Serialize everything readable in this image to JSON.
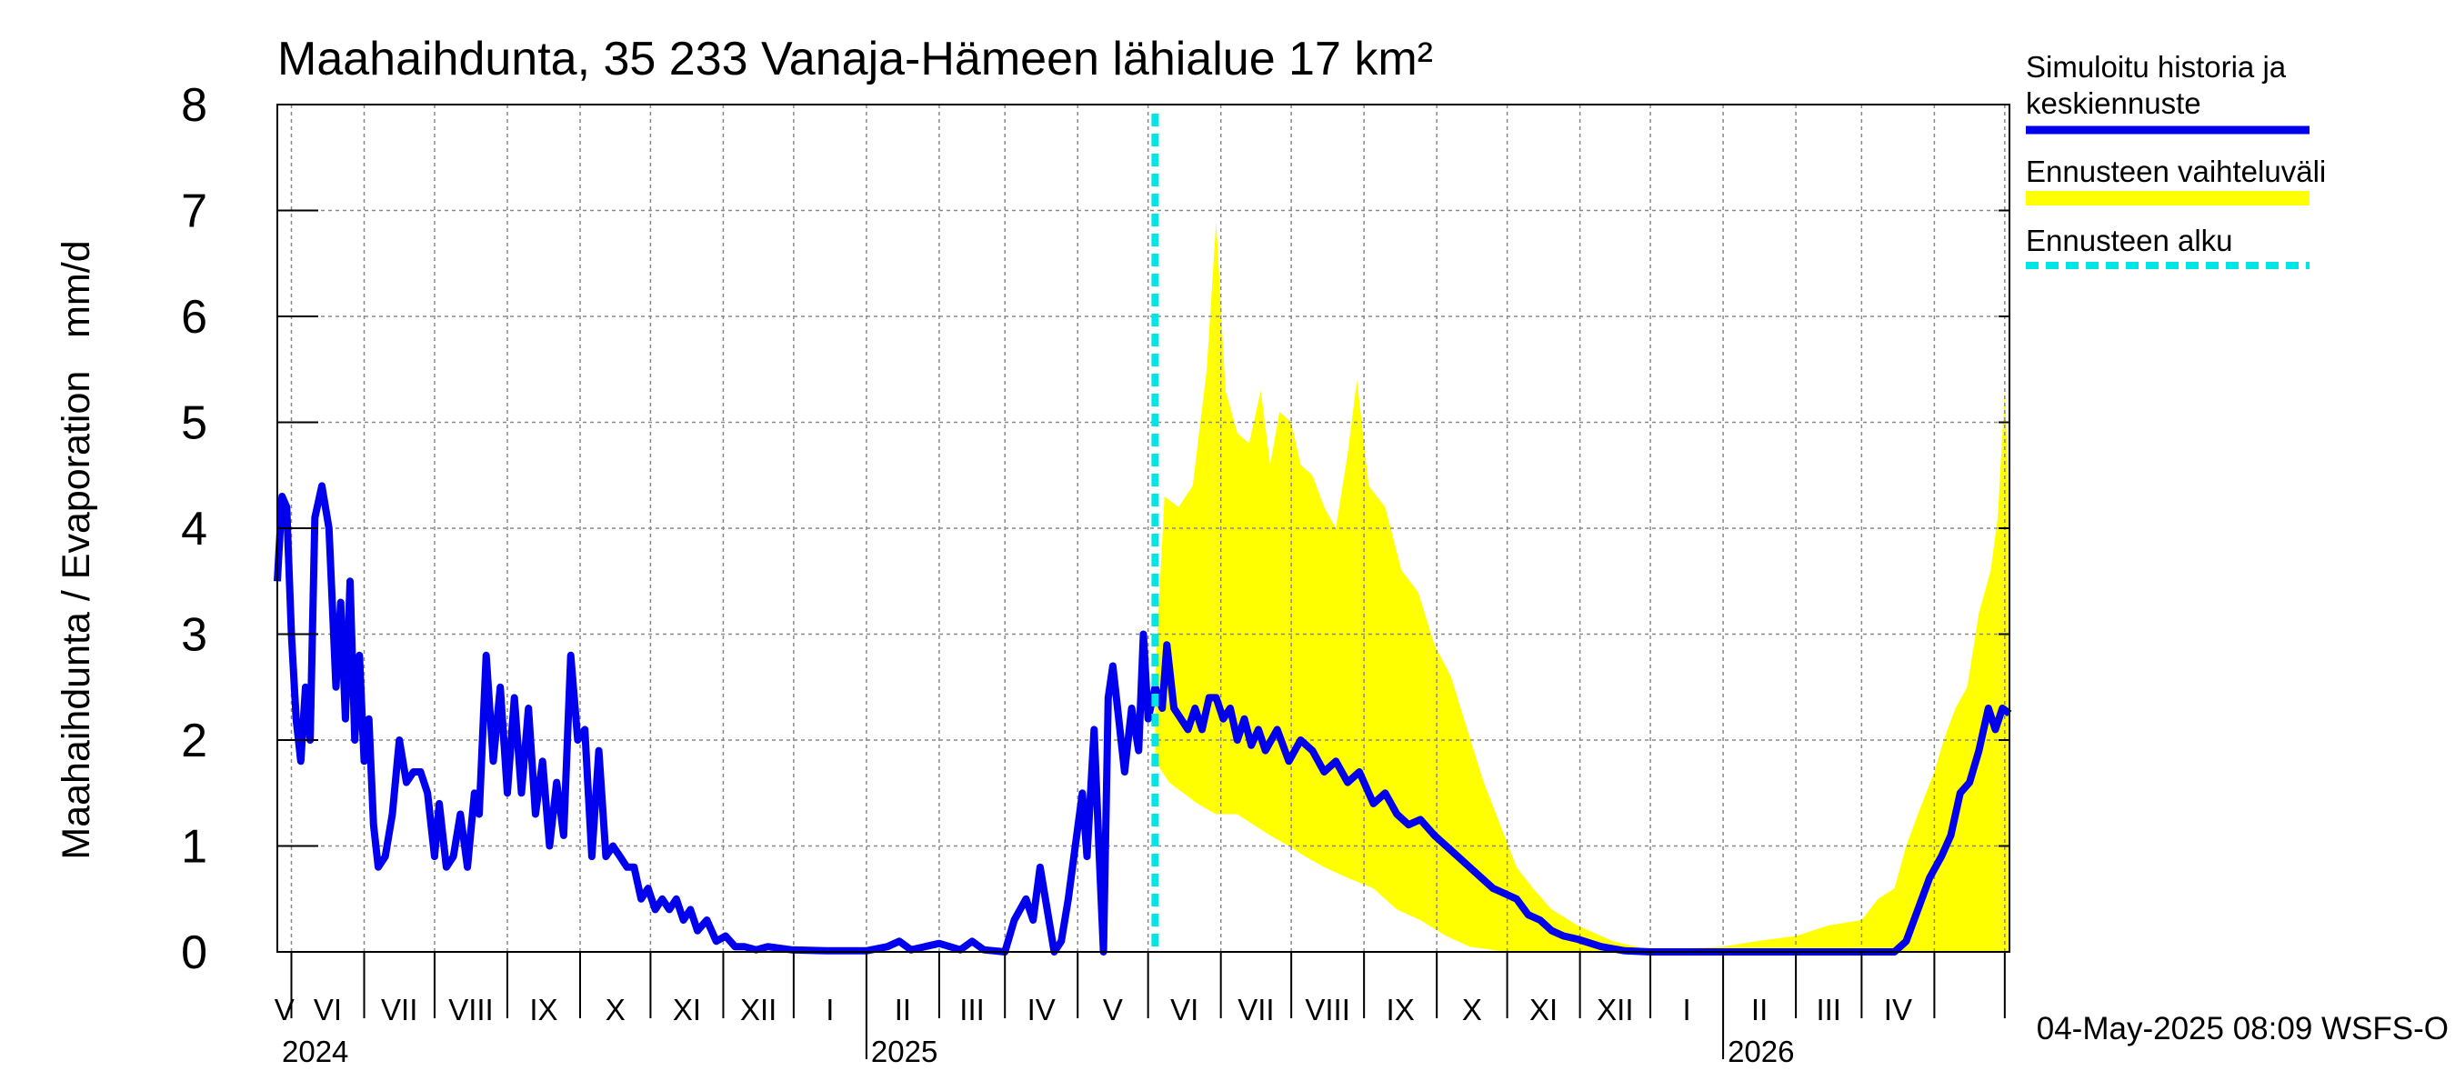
{
  "chart_data": {
    "type": "line",
    "title": "Maahaihdunta, 35 233 Vanaja-Hämeen lähialue 17 km²",
    "ylabel": "Maahaihdunta / Evaporation   mm/d",
    "xlabel": "",
    "ylim": [
      0,
      8
    ],
    "y_ticks": [
      "0",
      "1",
      "2",
      "3",
      "4",
      "5",
      "6",
      "7",
      "8"
    ],
    "month_labels": [
      "V",
      "VI",
      "VII",
      "VIII",
      "IX",
      "X",
      "XI",
      "XII",
      "I",
      "II",
      "III",
      "IV",
      "V",
      "VI",
      "VII",
      "VIII",
      "IX",
      "X",
      "XI",
      "XII",
      "I",
      "II",
      "III",
      "IV"
    ],
    "year_labels": [
      "2024",
      "2025",
      "2026"
    ],
    "x_start": "2024-04-25",
    "x_end": "2026-05-03",
    "grid": true,
    "legend_placement": "right",
    "footer": "04-May-2025 08:09 WSFS-O",
    "forecast_start": "2025-05-04",
    "colors": {
      "history": "#0000ee",
      "range": "#ffff00",
      "forecast_start": "#00e5e5",
      "grid": "#888888"
    },
    "series": [
      {
        "name": "Simuloitu historia ja keskiennuste",
        "key": "history",
        "points": [
          [
            "2024-04-25",
            3.5
          ],
          [
            "2024-04-27",
            4.3
          ],
          [
            "2024-04-29",
            4.2
          ],
          [
            "2024-05-01",
            3.0
          ],
          [
            "2024-05-03",
            2.2
          ],
          [
            "2024-05-05",
            1.8
          ],
          [
            "2024-05-07",
            2.5
          ],
          [
            "2024-05-09",
            2.0
          ],
          [
            "2024-05-11",
            4.1
          ],
          [
            "2024-05-14",
            4.4
          ],
          [
            "2024-05-17",
            4.0
          ],
          [
            "2024-05-20",
            2.5
          ],
          [
            "2024-05-22",
            3.3
          ],
          [
            "2024-05-24",
            2.2
          ],
          [
            "2024-05-26",
            3.5
          ],
          [
            "2024-05-28",
            2.0
          ],
          [
            "2024-05-30",
            2.8
          ],
          [
            "2024-06-01",
            1.8
          ],
          [
            "2024-06-03",
            2.2
          ],
          [
            "2024-06-05",
            1.2
          ],
          [
            "2024-06-07",
            0.8
          ],
          [
            "2024-06-10",
            0.9
          ],
          [
            "2024-06-13",
            1.3
          ],
          [
            "2024-06-16",
            2.0
          ],
          [
            "2024-06-19",
            1.6
          ],
          [
            "2024-06-22",
            1.7
          ],
          [
            "2024-06-25",
            1.7
          ],
          [
            "2024-06-28",
            1.5
          ],
          [
            "2024-07-01",
            0.9
          ],
          [
            "2024-07-03",
            1.4
          ],
          [
            "2024-07-06",
            0.8
          ],
          [
            "2024-07-09",
            0.9
          ],
          [
            "2024-07-12",
            1.3
          ],
          [
            "2024-07-15",
            0.8
          ],
          [
            "2024-07-18",
            1.5
          ],
          [
            "2024-07-20",
            1.3
          ],
          [
            "2024-07-23",
            2.8
          ],
          [
            "2024-07-26",
            1.8
          ],
          [
            "2024-07-29",
            2.5
          ],
          [
            "2024-08-01",
            1.5
          ],
          [
            "2024-08-04",
            2.4
          ],
          [
            "2024-08-07",
            1.5
          ],
          [
            "2024-08-10",
            2.3
          ],
          [
            "2024-08-13",
            1.3
          ],
          [
            "2024-08-16",
            1.8
          ],
          [
            "2024-08-19",
            1.0
          ],
          [
            "2024-08-22",
            1.6
          ],
          [
            "2024-08-25",
            1.1
          ],
          [
            "2024-08-28",
            2.8
          ],
          [
            "2024-08-31",
            2.0
          ],
          [
            "2024-09-03",
            2.1
          ],
          [
            "2024-09-06",
            0.9
          ],
          [
            "2024-09-09",
            1.9
          ],
          [
            "2024-09-12",
            0.9
          ],
          [
            "2024-09-15",
            1.0
          ],
          [
            "2024-09-18",
            0.9
          ],
          [
            "2024-09-21",
            0.8
          ],
          [
            "2024-09-24",
            0.8
          ],
          [
            "2024-09-27",
            0.5
          ],
          [
            "2024-09-30",
            0.6
          ],
          [
            "2024-10-03",
            0.4
          ],
          [
            "2024-10-06",
            0.5
          ],
          [
            "2024-10-09",
            0.4
          ],
          [
            "2024-10-12",
            0.5
          ],
          [
            "2024-10-15",
            0.3
          ],
          [
            "2024-10-18",
            0.4
          ],
          [
            "2024-10-21",
            0.2
          ],
          [
            "2024-10-25",
            0.3
          ],
          [
            "2024-10-29",
            0.1
          ],
          [
            "2024-11-02",
            0.15
          ],
          [
            "2024-11-06",
            0.05
          ],
          [
            "2024-11-10",
            0.05
          ],
          [
            "2024-11-15",
            0.02
          ],
          [
            "2024-11-20",
            0.05
          ],
          [
            "2024-11-30",
            0.02
          ],
          [
            "2024-12-15",
            0.01
          ],
          [
            "2025-01-01",
            0.01
          ],
          [
            "2025-01-10",
            0.05
          ],
          [
            "2025-01-15",
            0.1
          ],
          [
            "2025-01-20",
            0.02
          ],
          [
            "2025-02-01",
            0.08
          ],
          [
            "2025-02-10",
            0.02
          ],
          [
            "2025-02-15",
            0.1
          ],
          [
            "2025-02-20",
            0.02
          ],
          [
            "2025-03-01",
            0.0
          ],
          [
            "2025-03-05",
            0.3
          ],
          [
            "2025-03-10",
            0.5
          ],
          [
            "2025-03-13",
            0.3
          ],
          [
            "2025-03-16",
            0.8
          ],
          [
            "2025-03-19",
            0.4
          ],
          [
            "2025-03-22",
            0.0
          ],
          [
            "2025-03-25",
            0.1
          ],
          [
            "2025-03-28",
            0.5
          ],
          [
            "2025-03-31",
            1.0
          ],
          [
            "2025-04-03",
            1.5
          ],
          [
            "2025-04-05",
            0.9
          ],
          [
            "2025-04-08",
            2.1
          ],
          [
            "2025-04-10",
            1.0
          ],
          [
            "2025-04-12",
            0.0
          ],
          [
            "2025-04-14",
            2.4
          ],
          [
            "2025-04-16",
            2.7
          ],
          [
            "2025-04-18",
            2.3
          ],
          [
            "2025-04-21",
            1.7
          ],
          [
            "2025-04-24",
            2.3
          ],
          [
            "2025-04-27",
            1.9
          ],
          [
            "2025-04-29",
            3.0
          ],
          [
            "2025-05-01",
            2.2
          ],
          [
            "2025-05-04",
            2.5
          ],
          [
            "2025-05-07",
            2.3
          ],
          [
            "2025-05-09",
            2.9
          ],
          [
            "2025-05-12",
            2.3
          ],
          [
            "2025-05-15",
            2.2
          ],
          [
            "2025-05-18",
            2.1
          ],
          [
            "2025-05-21",
            2.3
          ],
          [
            "2025-05-24",
            2.1
          ],
          [
            "2025-05-27",
            2.4
          ],
          [
            "2025-05-30",
            2.4
          ],
          [
            "2025-06-02",
            2.2
          ],
          [
            "2025-06-05",
            2.3
          ],
          [
            "2025-06-08",
            2.0
          ],
          [
            "2025-06-11",
            2.2
          ],
          [
            "2025-06-14",
            1.95
          ],
          [
            "2025-06-17",
            2.1
          ],
          [
            "2025-06-20",
            1.9
          ],
          [
            "2025-06-25",
            2.1
          ],
          [
            "2025-06-30",
            1.8
          ],
          [
            "2025-07-05",
            2.0
          ],
          [
            "2025-07-10",
            1.9
          ],
          [
            "2025-07-15",
            1.7
          ],
          [
            "2025-07-20",
            1.8
          ],
          [
            "2025-07-25",
            1.6
          ],
          [
            "2025-07-30",
            1.7
          ],
          [
            "2025-08-05",
            1.4
          ],
          [
            "2025-08-10",
            1.5
          ],
          [
            "2025-08-15",
            1.3
          ],
          [
            "2025-08-20",
            1.2
          ],
          [
            "2025-08-25",
            1.25
          ],
          [
            "2025-08-31",
            1.1
          ],
          [
            "2025-09-05",
            1.0
          ],
          [
            "2025-09-10",
            0.9
          ],
          [
            "2025-09-15",
            0.8
          ],
          [
            "2025-09-20",
            0.7
          ],
          [
            "2025-09-25",
            0.6
          ],
          [
            "2025-09-30",
            0.55
          ],
          [
            "2025-10-05",
            0.5
          ],
          [
            "2025-10-10",
            0.35
          ],
          [
            "2025-10-15",
            0.3
          ],
          [
            "2025-10-20",
            0.2
          ],
          [
            "2025-10-25",
            0.15
          ],
          [
            "2025-10-31",
            0.12
          ],
          [
            "2025-11-10",
            0.05
          ],
          [
            "2025-11-20",
            0.01
          ],
          [
            "2025-12-01",
            0.0
          ],
          [
            "2026-01-01",
            0.0
          ],
          [
            "2026-02-01",
            0.0
          ],
          [
            "2026-03-15",
            0.0
          ],
          [
            "2026-03-20",
            0.1
          ],
          [
            "2026-03-25",
            0.4
          ],
          [
            "2026-03-30",
            0.7
          ],
          [
            "2026-04-04",
            0.9
          ],
          [
            "2026-04-08",
            1.1
          ],
          [
            "2026-04-12",
            1.5
          ],
          [
            "2026-04-16",
            1.6
          ],
          [
            "2026-04-20",
            1.9
          ],
          [
            "2026-04-24",
            2.3
          ],
          [
            "2026-04-27",
            2.1
          ],
          [
            "2026-04-30",
            2.3
          ],
          [
            "2026-05-03",
            2.25
          ]
        ]
      },
      {
        "name": "Ennusteen vaihteluväli",
        "key": "range",
        "upper": [
          [
            "2025-05-04",
            2.6
          ],
          [
            "2025-05-08",
            4.3
          ],
          [
            "2025-05-14",
            4.2
          ],
          [
            "2025-05-20",
            4.4
          ],
          [
            "2025-05-26",
            5.5
          ],
          [
            "2025-05-30",
            6.9
          ],
          [
            "2025-06-03",
            5.3
          ],
          [
            "2025-06-08",
            4.9
          ],
          [
            "2025-06-13",
            4.8
          ],
          [
            "2025-06-18",
            5.3
          ],
          [
            "2025-06-22",
            4.6
          ],
          [
            "2025-06-26",
            5.1
          ],
          [
            "2025-07-01",
            5.0
          ],
          [
            "2025-07-05",
            4.6
          ],
          [
            "2025-07-10",
            4.5
          ],
          [
            "2025-07-15",
            4.2
          ],
          [
            "2025-07-20",
            4.0
          ],
          [
            "2025-07-25",
            4.7
          ],
          [
            "2025-07-29",
            5.4
          ],
          [
            "2025-08-03",
            4.4
          ],
          [
            "2025-08-10",
            4.2
          ],
          [
            "2025-08-17",
            3.6
          ],
          [
            "2025-08-24",
            3.4
          ],
          [
            "2025-08-31",
            2.9
          ],
          [
            "2025-09-07",
            2.6
          ],
          [
            "2025-09-14",
            2.1
          ],
          [
            "2025-09-21",
            1.6
          ],
          [
            "2025-09-28",
            1.2
          ],
          [
            "2025-10-05",
            0.8
          ],
          [
            "2025-10-12",
            0.6
          ],
          [
            "2025-10-20",
            0.4
          ],
          [
            "2025-10-31",
            0.25
          ],
          [
            "2025-11-15",
            0.1
          ],
          [
            "2025-12-01",
            0.02
          ],
          [
            "2026-01-01",
            0.05
          ],
          [
            "2026-01-15",
            0.1
          ],
          [
            "2026-02-01",
            0.15
          ],
          [
            "2026-02-15",
            0.25
          ],
          [
            "2026-03-01",
            0.3
          ],
          [
            "2026-03-08",
            0.5
          ],
          [
            "2026-03-15",
            0.6
          ],
          [
            "2026-03-20",
            1.0
          ],
          [
            "2026-03-25",
            1.3
          ],
          [
            "2026-04-01",
            1.7
          ],
          [
            "2026-04-05",
            2.0
          ],
          [
            "2026-04-10",
            2.3
          ],
          [
            "2026-04-15",
            2.5
          ],
          [
            "2026-04-20",
            3.2
          ],
          [
            "2026-04-25",
            3.6
          ],
          [
            "2026-04-28",
            4.1
          ],
          [
            "2026-05-01",
            5.3
          ],
          [
            "2026-05-03",
            4.2
          ]
        ],
        "lower": [
          [
            "2025-05-04",
            1.8
          ],
          [
            "2025-05-10",
            1.6
          ],
          [
            "2025-05-16",
            1.5
          ],
          [
            "2025-05-22",
            1.4
          ],
          [
            "2025-05-30",
            1.3
          ],
          [
            "2025-06-08",
            1.3
          ],
          [
            "2025-06-15",
            1.2
          ],
          [
            "2025-06-22",
            1.1
          ],
          [
            "2025-06-30",
            1.0
          ],
          [
            "2025-07-07",
            0.9
          ],
          [
            "2025-07-15",
            0.8
          ],
          [
            "2025-07-25",
            0.7
          ],
          [
            "2025-08-05",
            0.6
          ],
          [
            "2025-08-15",
            0.4
          ],
          [
            "2025-08-25",
            0.3
          ],
          [
            "2025-09-05",
            0.15
          ],
          [
            "2025-09-15",
            0.05
          ],
          [
            "2025-10-01",
            0.0
          ],
          [
            "2026-05-03",
            0.0
          ]
        ]
      },
      {
        "name": "Ennusteen alku",
        "key": "forecast_start"
      }
    ]
  }
}
